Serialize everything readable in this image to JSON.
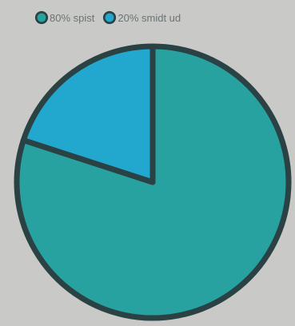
{
  "chart_data": {
    "type": "pie",
    "slices": [
      {
        "label": "80% spist",
        "value": 80,
        "color": "#27a2a0"
      },
      {
        "label": "20% smidt ud",
        "value": 20,
        "color": "#22a8cf"
      }
    ],
    "outline_color": "#2a4244",
    "legend_position": "top"
  }
}
